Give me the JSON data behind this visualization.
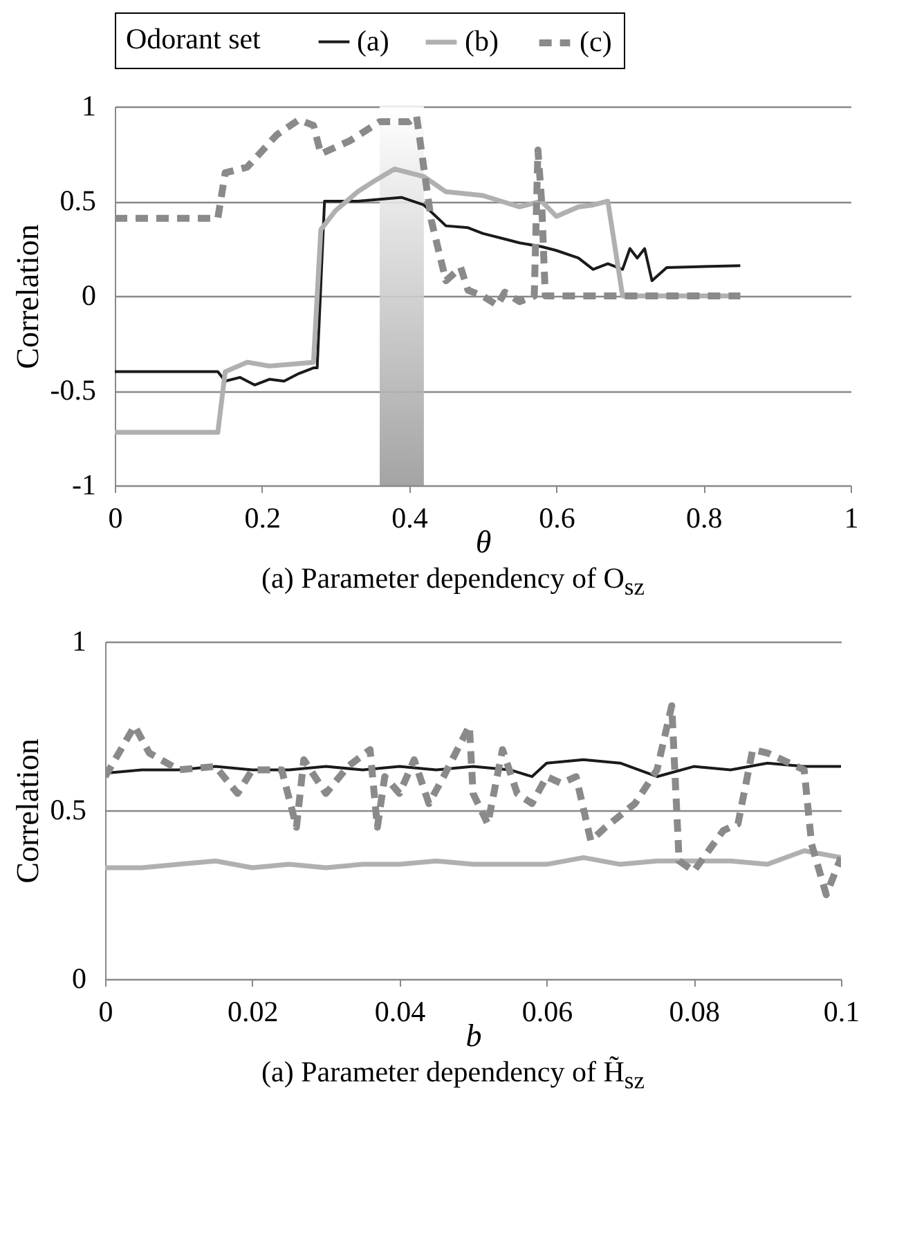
{
  "chart_data": [
    {
      "type": "line",
      "title": "(a) Parameter dependency of O$_{sz}$",
      "xlabel": "θ",
      "ylabel": "Correlation",
      "legend_title": "Odorant set",
      "legend": "top",
      "xlim": [
        0,
        1
      ],
      "xticks": [
        0,
        0.2,
        0.4,
        0.6,
        0.8,
        1
      ],
      "ylim": [
        -1,
        1
      ],
      "yticks": [
        -1,
        -0.5,
        0,
        0.5,
        1
      ],
      "grid": "y",
      "bands": [
        {
          "axis": "x",
          "from": 0.36,
          "to": 0.42,
          "color": "#9a9a9a"
        }
      ],
      "series": [
        {
          "name": "(a)",
          "color": "#1a1a1a",
          "line_style": "solid",
          "x": [
            0,
            0.14,
            0.15,
            0.17,
            0.19,
            0.21,
            0.23,
            0.25,
            0.27,
            0.275,
            0.285,
            0.3,
            0.33,
            0.36,
            0.39,
            0.42,
            0.45,
            0.48,
            0.5,
            0.53,
            0.55,
            0.58,
            0.6,
            0.63,
            0.65,
            0.67,
            0.69,
            0.7,
            0.71,
            0.72,
            0.73,
            0.75,
            0.85
          ],
          "values": [
            -0.4,
            -0.4,
            -0.45,
            -0.43,
            -0.47,
            -0.44,
            -0.45,
            -0.41,
            -0.38,
            -0.38,
            0.5,
            0.5,
            0.5,
            0.51,
            0.52,
            0.48,
            0.37,
            0.36,
            0.33,
            0.3,
            0.28,
            0.26,
            0.24,
            0.2,
            0.14,
            0.17,
            0.14,
            0.25,
            0.2,
            0.25,
            0.08,
            0.15,
            0.16
          ]
        },
        {
          "name": "(b)",
          "color": "#b0b0b0",
          "line_style": "solid",
          "x": [
            0,
            0.14,
            0.15,
            0.18,
            0.21,
            0.24,
            0.27,
            0.28,
            0.3,
            0.33,
            0.35,
            0.38,
            0.42,
            0.45,
            0.5,
            0.55,
            0.58,
            0.6,
            0.63,
            0.65,
            0.67,
            0.69,
            0.85
          ],
          "values": [
            -0.72,
            -0.72,
            -0.4,
            -0.35,
            -0.37,
            -0.36,
            -0.35,
            0.35,
            0.45,
            0.55,
            0.6,
            0.67,
            0.63,
            0.55,
            0.53,
            0.47,
            0.5,
            0.42,
            0.47,
            0.48,
            0.5,
            0.0,
            0.0
          ]
        },
        {
          "name": "(c)",
          "color": "#8a8a8a",
          "line_style": "dashed",
          "x": [
            0,
            0.14,
            0.15,
            0.18,
            0.22,
            0.25,
            0.27,
            0.28,
            0.32,
            0.36,
            0.4,
            0.41,
            0.43,
            0.45,
            0.47,
            0.48,
            0.5,
            0.52,
            0.53,
            0.55,
            0.57,
            0.575,
            0.58,
            0.585,
            0.6,
            0.85
          ],
          "values": [
            0.41,
            0.41,
            0.65,
            0.68,
            0.85,
            0.93,
            0.9,
            0.75,
            0.82,
            0.92,
            0.92,
            0.95,
            0.4,
            0.08,
            0.15,
            0.03,
            0.0,
            -0.05,
            0.02,
            -0.03,
            0.0,
            0.77,
            0.5,
            0.0,
            0.0,
            0.0
          ]
        }
      ]
    },
    {
      "type": "line",
      "title": "(a) Parameter dependency of H̃$_{sz}$",
      "xlabel": "b",
      "ylabel": "Correlation",
      "xlim": [
        0,
        0.1
      ],
      "xticks": [
        0,
        0.02,
        0.04,
        0.06,
        0.08,
        0.1
      ],
      "ylim": [
        0,
        1
      ],
      "yticks": [
        0,
        0.5,
        1
      ],
      "grid": "y",
      "series": [
        {
          "color": "#1a1a1a",
          "line_style": "solid",
          "x": [
            0,
            0.005,
            0.01,
            0.015,
            0.02,
            0.025,
            0.03,
            0.035,
            0.04,
            0.045,
            0.05,
            0.055,
            0.058,
            0.06,
            0.065,
            0.07,
            0.075,
            0.08,
            0.085,
            0.09,
            0.095,
            0.1
          ],
          "values": [
            0.61,
            0.62,
            0.62,
            0.63,
            0.62,
            0.62,
            0.63,
            0.62,
            0.63,
            0.62,
            0.63,
            0.62,
            0.6,
            0.64,
            0.65,
            0.64,
            0.6,
            0.63,
            0.62,
            0.64,
            0.63,
            0.63
          ]
        },
        {
          "color": "#b0b0b0",
          "line_style": "solid",
          "x": [
            0,
            0.005,
            0.01,
            0.015,
            0.02,
            0.025,
            0.03,
            0.035,
            0.04,
            0.045,
            0.05,
            0.055,
            0.06,
            0.065,
            0.07,
            0.075,
            0.08,
            0.085,
            0.09,
            0.095,
            0.1
          ],
          "values": [
            0.33,
            0.33,
            0.34,
            0.35,
            0.33,
            0.34,
            0.33,
            0.34,
            0.34,
            0.35,
            0.34,
            0.34,
            0.34,
            0.36,
            0.34,
            0.35,
            0.35,
            0.35,
            0.34,
            0.38,
            0.36
          ]
        },
        {
          "color": "#8a8a8a",
          "line_style": "dashed",
          "x": [
            0,
            0.004,
            0.006,
            0.01,
            0.015,
            0.018,
            0.02,
            0.024,
            0.026,
            0.027,
            0.03,
            0.033,
            0.036,
            0.037,
            0.038,
            0.04,
            0.042,
            0.044,
            0.046,
            0.0495,
            0.05,
            0.052,
            0.054,
            0.056,
            0.058,
            0.06,
            0.062,
            0.064,
            0.066,
            0.068,
            0.072,
            0.075,
            0.077,
            0.078,
            0.08,
            0.082,
            0.084,
            0.086,
            0.088,
            0.09,
            0.093,
            0.095,
            0.096,
            0.098,
            0.1
          ],
          "values": [
            0.6,
            0.75,
            0.67,
            0.62,
            0.63,
            0.55,
            0.62,
            0.62,
            0.45,
            0.65,
            0.55,
            0.63,
            0.68,
            0.45,
            0.6,
            0.55,
            0.65,
            0.52,
            0.6,
            0.75,
            0.55,
            0.46,
            0.68,
            0.55,
            0.52,
            0.6,
            0.58,
            0.6,
            0.41,
            0.45,
            0.52,
            0.62,
            0.81,
            0.35,
            0.32,
            0.38,
            0.44,
            0.46,
            0.68,
            0.67,
            0.64,
            0.62,
            0.4,
            0.25,
            0.36
          ]
        }
      ]
    }
  ]
}
